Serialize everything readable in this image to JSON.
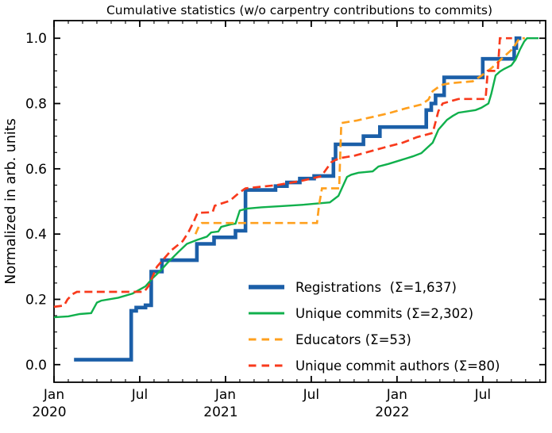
{
  "chart_data": {
    "type": "line",
    "title": "Cumulative statistics (w/o carpentry contributions to commits)",
    "ylabel": "Normalized in arb. units",
    "xlabel": "",
    "grid": false,
    "legend_position": "lower-right-inside",
    "x_unit": "months since 2020-01",
    "xlim": [
      0,
      34.4
    ],
    "ylim": [
      -0.054,
      1.054
    ],
    "x_major_ticks": [
      {
        "m": 0,
        "label": "Jan",
        "year": "2020"
      },
      {
        "m": 6,
        "label": "Jul",
        "year": ""
      },
      {
        "m": 12,
        "label": "Jan",
        "year": "2021"
      },
      {
        "m": 18,
        "label": "Jul",
        "year": ""
      },
      {
        "m": 24,
        "label": "Jan",
        "year": "2022"
      },
      {
        "m": 30,
        "label": "Jul",
        "year": ""
      }
    ],
    "x_minor_tick_step_months": 1,
    "y_major_ticks": [
      {
        "v": 0.0,
        "label": "0.0"
      },
      {
        "v": 0.2,
        "label": "0.2"
      },
      {
        "v": 0.4,
        "label": "0.4"
      },
      {
        "v": 0.6,
        "label": "0.6"
      },
      {
        "v": 0.8,
        "label": "0.8"
      },
      {
        "v": 1.0,
        "label": "1.0"
      }
    ],
    "y_minor_tick_step": 0.05,
    "series": [
      {
        "name": "registrations",
        "legend_label": "Registrations  (Σ=1,637)",
        "sum": "1,637",
        "color": "#1b5fa8",
        "style": "solid",
        "width": 4.6,
        "draw": "step",
        "points": [
          [
            1.4,
            0.015
          ],
          [
            5.4,
            0.165
          ],
          [
            5.75,
            0.175
          ],
          [
            6.4,
            0.182
          ],
          [
            6.8,
            0.285
          ],
          [
            7.55,
            0.32
          ],
          [
            10.0,
            0.37
          ],
          [
            11.2,
            0.39
          ],
          [
            12.7,
            0.41
          ],
          [
            13.4,
            0.535
          ],
          [
            15.5,
            0.547
          ],
          [
            16.3,
            0.558
          ],
          [
            17.2,
            0.57
          ],
          [
            18.2,
            0.578
          ],
          [
            19.55,
            0.63
          ],
          [
            19.7,
            0.675
          ],
          [
            21.65,
            0.7
          ],
          [
            22.8,
            0.728
          ],
          [
            26.05,
            0.78
          ],
          [
            26.4,
            0.8
          ],
          [
            26.7,
            0.825
          ],
          [
            27.3,
            0.88
          ],
          [
            30.0,
            0.937
          ],
          [
            32.2,
            0.97
          ],
          [
            32.35,
            1.0
          ]
        ],
        "end_m": 32.7
      },
      {
        "name": "unique-commits",
        "legend_label": "Unique commits (Σ=2,302)",
        "sum": "2,302",
        "color": "#10b04c",
        "style": "solid",
        "width": 2.4,
        "draw": "line",
        "points": [
          [
            0,
            0.145
          ],
          [
            1.0,
            0.148
          ],
          [
            1.8,
            0.155
          ],
          [
            2.6,
            0.158
          ],
          [
            3.0,
            0.19
          ],
          [
            3.3,
            0.196
          ],
          [
            4.5,
            0.205
          ],
          [
            5.5,
            0.218
          ],
          [
            6.4,
            0.24
          ],
          [
            6.9,
            0.265
          ],
          [
            7.5,
            0.29
          ],
          [
            7.9,
            0.31
          ],
          [
            8.7,
            0.345
          ],
          [
            9.3,
            0.37
          ],
          [
            10.0,
            0.382
          ],
          [
            10.7,
            0.392
          ],
          [
            11.0,
            0.405
          ],
          [
            11.5,
            0.408
          ],
          [
            11.7,
            0.422
          ],
          [
            12.4,
            0.43
          ],
          [
            12.7,
            0.432
          ],
          [
            13.0,
            0.472
          ],
          [
            13.5,
            0.478
          ],
          [
            14.5,
            0.482
          ],
          [
            16.0,
            0.486
          ],
          [
            17.5,
            0.49
          ],
          [
            19.3,
            0.497
          ],
          [
            19.9,
            0.517
          ],
          [
            20.5,
            0.575
          ],
          [
            20.8,
            0.582
          ],
          [
            21.3,
            0.588
          ],
          [
            22.3,
            0.592
          ],
          [
            22.7,
            0.607
          ],
          [
            23.4,
            0.615
          ],
          [
            24.3,
            0.627
          ],
          [
            25.1,
            0.638
          ],
          [
            25.7,
            0.648
          ],
          [
            26.5,
            0.68
          ],
          [
            26.9,
            0.72
          ],
          [
            27.2,
            0.735
          ],
          [
            27.5,
            0.75
          ],
          [
            27.9,
            0.762
          ],
          [
            28.3,
            0.772
          ],
          [
            29.5,
            0.78
          ],
          [
            29.9,
            0.787
          ],
          [
            30.4,
            0.8
          ],
          [
            30.6,
            0.83
          ],
          [
            30.9,
            0.886
          ],
          [
            31.2,
            0.898
          ],
          [
            31.5,
            0.906
          ],
          [
            32.0,
            0.917
          ],
          [
            32.3,
            0.935
          ],
          [
            32.6,
            0.965
          ],
          [
            32.9,
            0.99
          ],
          [
            33.1,
            1.0
          ],
          [
            33.9,
            1.0
          ]
        ],
        "end_m": 33.9
      },
      {
        "name": "educators",
        "legend_label": "Educators (Σ=53)",
        "sum": "53",
        "color": "#ffa01e",
        "style": "dashed",
        "width": 2.7,
        "draw": "line",
        "points": [
          [
            9.9,
            0.4
          ],
          [
            10.15,
            0.425
          ],
          [
            10.35,
            0.434
          ],
          [
            18.4,
            0.434
          ],
          [
            18.55,
            0.49
          ],
          [
            18.75,
            0.54
          ],
          [
            19.95,
            0.54
          ],
          [
            20.1,
            0.74
          ],
          [
            21.2,
            0.748
          ],
          [
            23.4,
            0.77
          ],
          [
            24.6,
            0.785
          ],
          [
            25.7,
            0.797
          ],
          [
            26.2,
            0.812
          ],
          [
            26.5,
            0.838
          ],
          [
            27.1,
            0.857
          ],
          [
            27.7,
            0.862
          ],
          [
            29.3,
            0.868
          ],
          [
            29.8,
            0.882
          ],
          [
            30.6,
            0.908
          ],
          [
            31.4,
            0.94
          ],
          [
            32.1,
            0.968
          ],
          [
            32.45,
            0.992
          ],
          [
            32.6,
            1.0
          ],
          [
            32.95,
            1.0
          ]
        ],
        "end_m": 32.95
      },
      {
        "name": "unique-commit-authors",
        "legend_label": "Unique commit authors (Σ=80)",
        "sum": "80",
        "color": "#f83a1c",
        "style": "dashed",
        "width": 2.7,
        "draw": "line",
        "points": [
          [
            0,
            0.177
          ],
          [
            0.7,
            0.181
          ],
          [
            0.95,
            0.2
          ],
          [
            1.3,
            0.216
          ],
          [
            1.6,
            0.223
          ],
          [
            6.3,
            0.223
          ],
          [
            6.6,
            0.24
          ],
          [
            7.2,
            0.3
          ],
          [
            8.2,
            0.35
          ],
          [
            9.0,
            0.378
          ],
          [
            9.4,
            0.405
          ],
          [
            9.8,
            0.44
          ],
          [
            10.05,
            0.465
          ],
          [
            11.1,
            0.467
          ],
          [
            11.25,
            0.487
          ],
          [
            12.3,
            0.502
          ],
          [
            12.7,
            0.517
          ],
          [
            13.0,
            0.528
          ],
          [
            13.4,
            0.54
          ],
          [
            15.6,
            0.55
          ],
          [
            17.3,
            0.563
          ],
          [
            18.7,
            0.577
          ],
          [
            19.4,
            0.62
          ],
          [
            19.9,
            0.632
          ],
          [
            21.0,
            0.64
          ],
          [
            23.0,
            0.664
          ],
          [
            24.4,
            0.68
          ],
          [
            25.4,
            0.697
          ],
          [
            26.5,
            0.71
          ],
          [
            26.9,
            0.777
          ],
          [
            27.2,
            0.8
          ],
          [
            28.3,
            0.814
          ],
          [
            30.2,
            0.814
          ],
          [
            30.35,
            0.9
          ],
          [
            31.05,
            0.9
          ],
          [
            31.2,
            1.0
          ],
          [
            32.05,
            1.0
          ]
        ],
        "end_m": 32.05
      }
    ]
  }
}
